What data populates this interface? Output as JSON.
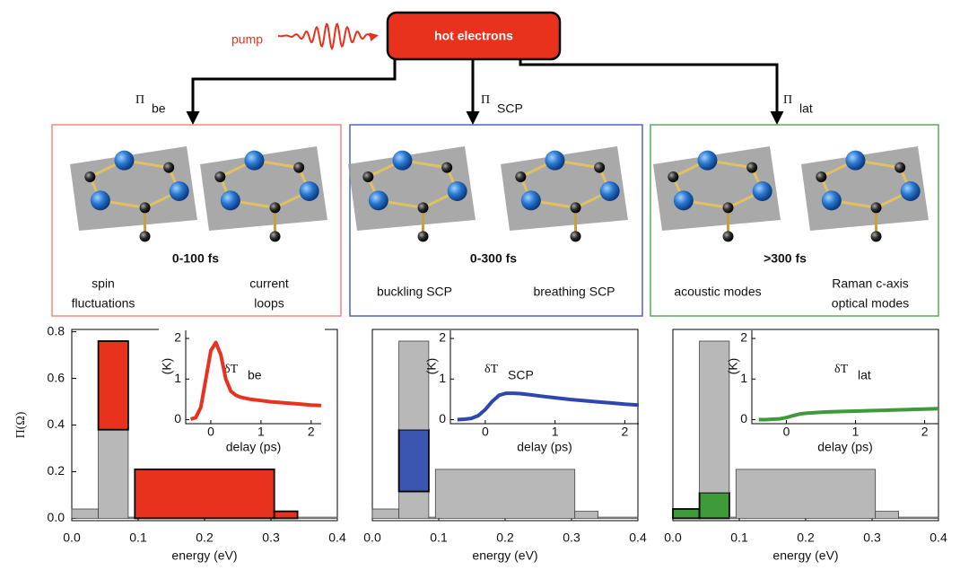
{
  "diagram": {
    "pump": "pump",
    "source": "hot electrons",
    "channels": [
      {
        "symbol": "Π",
        "subscript": "be",
        "time": "0-100 fs",
        "modes": [
          [
            "spin",
            "fluctuations"
          ],
          [
            "current",
            "loops"
          ]
        ]
      },
      {
        "symbol": "Π",
        "subscript": "SCP",
        "time": "0-300 fs",
        "modes": [
          [
            "buckling SCP"
          ],
          [
            "breathing SCP"
          ]
        ]
      },
      {
        "symbol": "Π",
        "subscript": "lat",
        "time": ">300 fs",
        "modes": [
          [
            "acoustic modes"
          ],
          [
            "Raman c-axis",
            "optical modes"
          ]
        ]
      }
    ]
  },
  "chart_data": [
    {
      "type": "histogram",
      "xlabel": "energy (eV)",
      "ylabel": "Π(Ω)",
      "bins": [
        0,
        0.04,
        0.085,
        0.095,
        0.305,
        0.34,
        0.4
      ],
      "series": [
        {
          "color": "#b8b8b8",
          "values": [
            0.04,
            0.38,
            0.005,
            0,
            0,
            0.005
          ]
        },
        {
          "color": "#e8321e",
          "values": [
            0,
            0.38,
            0,
            0.21,
            0.03,
            0
          ]
        }
      ],
      "xlim": [
        0,
        0.4
      ],
      "xticks": [
        {
          "value": 0,
          "label": "0.0"
        },
        0.1,
        0.2,
        0.3,
        0.4
      ],
      "ylim": [
        -0.01,
        0.81
      ],
      "yticks": [
        {
          "value": 0,
          "label": "0.0"
        },
        0.2,
        0.4,
        0.6,
        0.8
      ],
      "inset": {
        "type": "line",
        "title": "δT",
        "title_subscript": "be",
        "xlabel": "delay (ps)",
        "ylabel": "(K)",
        "x": [
          -0.4,
          -0.3,
          -0.2,
          -0.1,
          0,
          0.1,
          0.2,
          0.3,
          0.4,
          0.5,
          0.6,
          0.8,
          1.0,
          1.2,
          1.4,
          1.6,
          1.8,
          2.0,
          2.2
        ],
        "series": [
          {
            "color": "#e8321e",
            "values": [
              0.01,
              0.05,
              0.3,
              1.0,
              1.7,
              1.9,
              1.6,
              1.0,
              0.7,
              0.6,
              0.55,
              0.5,
              0.47,
              0.44,
              0.42,
              0.4,
              0.38,
              0.36,
              0.35
            ]
          }
        ],
        "xlim": [
          -0.5,
          2.2
        ],
        "xticks": [
          0,
          1,
          2
        ],
        "ylim": [
          -0.1,
          2.2
        ],
        "yticks": [
          0,
          1,
          2
        ]
      }
    },
    {
      "type": "histogram",
      "xlabel": "energy (eV)",
      "bins": [
        0,
        0.04,
        0.085,
        0.095,
        0.305,
        0.34,
        0.4
      ],
      "series": [
        {
          "color": "#b8b8b8",
          "values": [
            0.04,
            0.115,
            0.005,
            0.21,
            0.03,
            0.005
          ]
        },
        {
          "color": "#3a56b0",
          "values": [
            0,
            0.265,
            0,
            0,
            0,
            0
          ]
        },
        {
          "color": "#b8b8b8",
          "values": [
            0,
            0.38,
            0,
            0,
            0,
            0
          ]
        }
      ],
      "xlim": [
        0,
        0.4
      ],
      "xticks": [
        {
          "value": 0,
          "label": "0.0"
        },
        0.1,
        0.2,
        0.3,
        0.4
      ],
      "ylim": [
        -0.01,
        0.81
      ],
      "inset": {
        "type": "line",
        "title": "δT",
        "title_subscript": "SCP",
        "xlabel": "delay (ps)",
        "ylabel": "(K)",
        "x": [
          -0.4,
          -0.3,
          -0.2,
          -0.1,
          0,
          0.1,
          0.2,
          0.3,
          0.4,
          0.5,
          0.6,
          0.8,
          1.0,
          1.2,
          1.4,
          1.6,
          1.8,
          2.0,
          2.2
        ],
        "series": [
          {
            "color": "#2e47b0",
            "values": [
              0,
              0.01,
              0.03,
              0.1,
              0.25,
              0.45,
              0.6,
              0.65,
              0.65,
              0.64,
              0.62,
              0.58,
              0.54,
              0.5,
              0.47,
              0.44,
              0.41,
              0.38,
              0.36
            ]
          }
        ],
        "xlim": [
          -0.5,
          2.2
        ],
        "xticks": [
          0,
          1,
          2
        ],
        "ylim": [
          -0.1,
          2.2
        ],
        "yticks": [
          0,
          1,
          2
        ]
      }
    },
    {
      "type": "histogram",
      "xlabel": "energy (eV)",
      "bins": [
        0,
        0.04,
        0.085,
        0.095,
        0.305,
        0.34,
        0.4
      ],
      "series": [
        {
          "color": "#3f9a3a",
          "values": [
            0.04,
            0.11,
            0,
            0,
            0,
            0
          ]
        },
        {
          "color": "#b8b8b8",
          "values": [
            0,
            0.65,
            0.005,
            0.21,
            0.03,
            0.005
          ]
        }
      ],
      "xlim": [
        0,
        0.4
      ],
      "xticks": [
        {
          "value": 0,
          "label": "0.0"
        },
        0.1,
        0.2,
        0.3,
        0.4
      ],
      "ylim": [
        -0.01,
        0.81
      ],
      "inset": {
        "type": "line",
        "title": "δT",
        "title_subscript": "lat",
        "xlabel": "delay (ps)",
        "ylabel": "(K)",
        "x": [
          -0.4,
          -0.3,
          -0.2,
          -0.1,
          0,
          0.1,
          0.2,
          0.3,
          0.4,
          0.5,
          0.6,
          0.8,
          1.0,
          1.2,
          1.4,
          1.6,
          1.8,
          2.0,
          2.2
        ],
        "series": [
          {
            "color": "#3f9a3a",
            "values": [
              0,
              0,
              0.01,
              0.02,
              0.05,
              0.1,
              0.14,
              0.16,
              0.17,
              0.18,
              0.19,
              0.2,
              0.21,
              0.22,
              0.23,
              0.24,
              0.25,
              0.26,
              0.27
            ]
          }
        ],
        "xlim": [
          -0.5,
          2.2
        ],
        "xticks": [
          0,
          1,
          2
        ],
        "ylim": [
          -0.1,
          2.2
        ],
        "yticks": [
          0,
          1,
          2
        ]
      }
    }
  ]
}
